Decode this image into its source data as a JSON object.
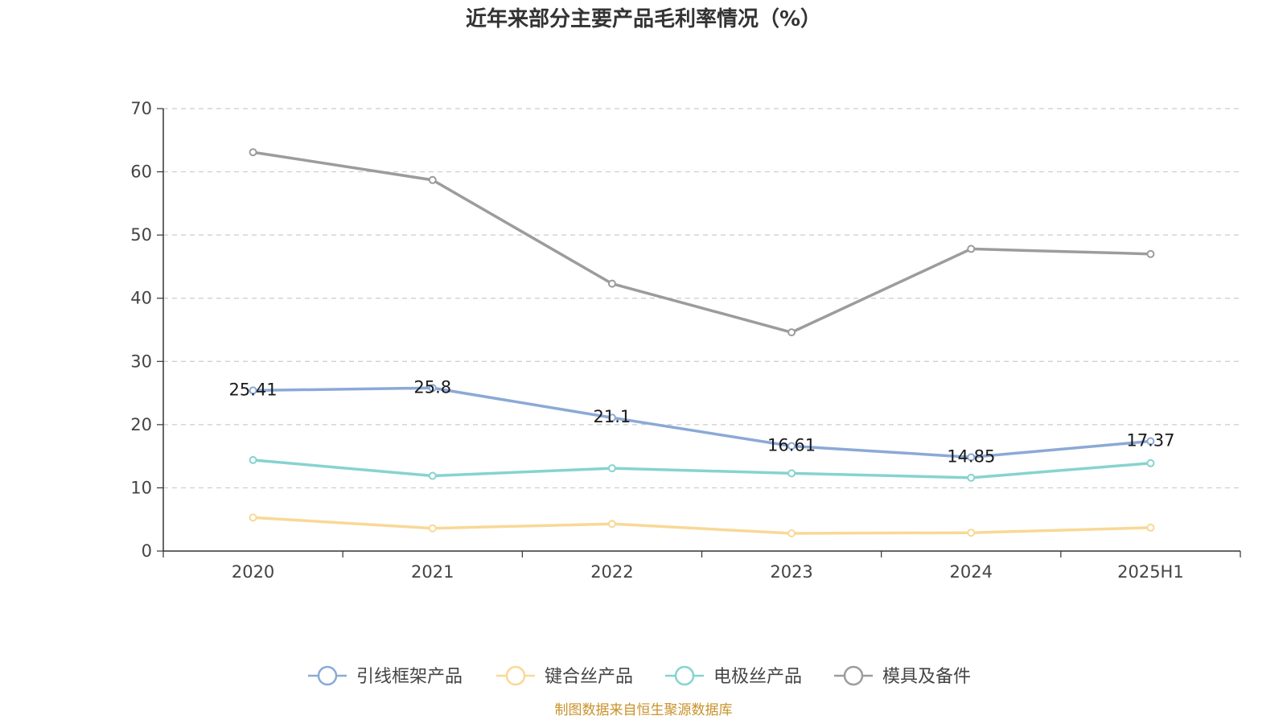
{
  "chart_data": {
    "type": "line",
    "title": "近年来部分主要产品毛利率情况（%）",
    "categories": [
      "2020",
      "2021",
      "2022",
      "2023",
      "2024",
      "2025H1"
    ],
    "ylim": [
      0,
      70
    ],
    "yticks": [
      0,
      10,
      20,
      30,
      40,
      50,
      60,
      70
    ],
    "grid": "dashed-horizontal",
    "legend_position": "bottom",
    "series": [
      {
        "name": "引线框架产品",
        "color": "#8ba9d6",
        "values": [
          25.41,
          25.8,
          21.1,
          16.61,
          14.85,
          17.37
        ],
        "labels": [
          "25.41",
          "25.8",
          "21.1",
          "16.61",
          "14.85",
          "17.37"
        ]
      },
      {
        "name": "键合丝产品",
        "color": "#f9d896",
        "values": [
          5.3,
          3.6,
          4.3,
          2.8,
          2.9,
          3.7
        ]
      },
      {
        "name": "电极丝产品",
        "color": "#86d3d0",
        "values": [
          14.4,
          11.9,
          13.1,
          12.3,
          11.6,
          13.9
        ]
      },
      {
        "name": "模具及备件",
        "color": "#9c9c9c",
        "values": [
          63.1,
          58.7,
          42.3,
          34.6,
          47.8,
          47.0
        ]
      }
    ]
  },
  "source": "制图数据来自恒生聚源数据库"
}
